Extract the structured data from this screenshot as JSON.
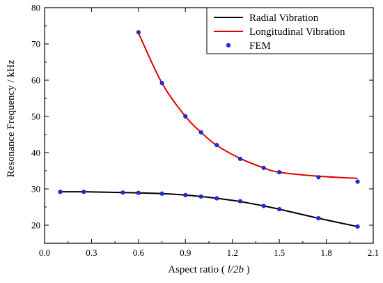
{
  "chart_data": {
    "type": "line",
    "title": "",
    "xlabel_main": "Aspect ratio (",
    "xlabel_italic": "l/2b",
    "xlabel_close": ")",
    "ylabel": "Resonance Frequency / kHz",
    "xlim": [
      0.0,
      2.1
    ],
    "ylim": [
      15,
      80
    ],
    "xticks": [
      0.0,
      0.3,
      0.6,
      0.9,
      1.2,
      1.5,
      1.8,
      2.1
    ],
    "xtick_labels": [
      "0.0",
      "0.3",
      "0.6",
      "0.9",
      "1.2",
      "1.5",
      "1.8",
      "2.1"
    ],
    "yticks": [
      20,
      30,
      40,
      50,
      60,
      70,
      80
    ],
    "ytick_labels": [
      "20",
      "30",
      "40",
      "50",
      "60",
      "70",
      "80"
    ],
    "legend_position": "top-right",
    "grid": false,
    "series": [
      {
        "name": "Radial Vibration",
        "kind": "line",
        "color": "#000000",
        "x": [
          0.1,
          0.25,
          0.5,
          0.6,
          0.75,
          0.9,
          1.0,
          1.1,
          1.25,
          1.4,
          1.5,
          1.75,
          2.0
        ],
        "y": [
          29.2,
          29.2,
          29.0,
          28.9,
          28.7,
          28.3,
          27.9,
          27.4,
          26.5,
          25.3,
          24.4,
          21.9,
          19.6
        ]
      },
      {
        "name": "Longitudinal Vibration",
        "kind": "line",
        "color": "#e00000",
        "x": [
          0.6,
          0.75,
          0.9,
          1.0,
          1.1,
          1.25,
          1.4,
          1.5,
          1.75,
          2.0
        ],
        "y": [
          73.0,
          59.2,
          50.0,
          45.6,
          42.0,
          38.4,
          35.8,
          34.6,
          33.5,
          32.9
        ]
      },
      {
        "name": "FEM",
        "kind": "scatter",
        "color": "#1c2fe8",
        "x": [
          0.1,
          0.25,
          0.5,
          0.6,
          0.75,
          0.9,
          1.0,
          1.1,
          1.25,
          1.4,
          1.5,
          1.75,
          2.0,
          0.6,
          0.75,
          0.9,
          1.0,
          1.1,
          1.25,
          1.4,
          1.5,
          1.75,
          2.0
        ],
        "y": [
          29.2,
          29.2,
          29.0,
          28.9,
          28.7,
          28.3,
          27.9,
          27.4,
          26.6,
          25.3,
          24.4,
          21.9,
          19.6,
          73.2,
          59.2,
          50.0,
          45.6,
          42.1,
          38.3,
          35.8,
          34.6,
          33.2,
          32.0
        ]
      }
    ]
  }
}
